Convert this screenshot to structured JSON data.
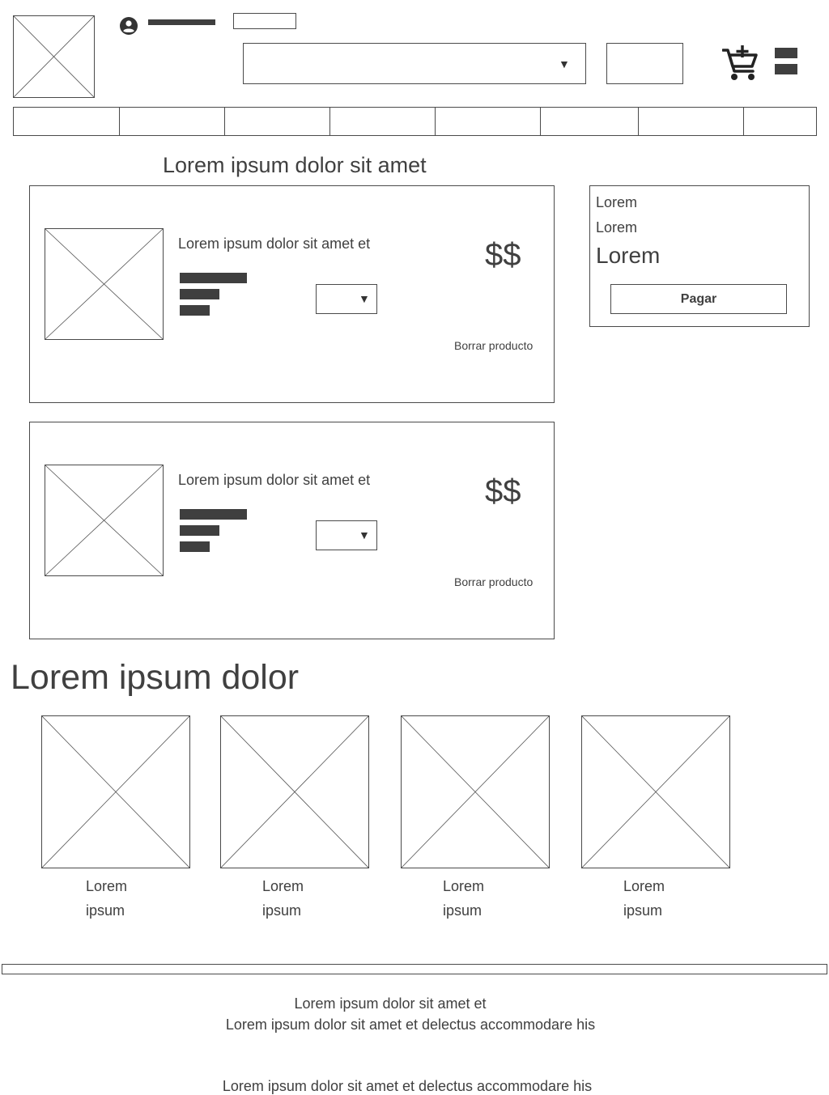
{
  "header": {
    "logo_icon": "image-placeholder-icon",
    "user_icon": "user-circle-icon",
    "cart_icon": "cart-add-icon",
    "menu_icon": "menu-icon"
  },
  "cart": {
    "title": "Lorem ipsum dolor sit amet",
    "items": [
      {
        "name": "Lorem ipsum dolor sit amet et",
        "price": "$$",
        "remove_label": "Borrar producto",
        "quantity_caret": "▼"
      },
      {
        "name": "Lorem ipsum dolor sit amet et",
        "price": "$$",
        "remove_label": "Borrar producto",
        "quantity_caret": "▼"
      }
    ]
  },
  "search": {
    "caret": "▼"
  },
  "summary": {
    "line1": "Lorem",
    "line2": "Lorem",
    "total": "Lorem",
    "pay_button": "Pagar"
  },
  "related": {
    "title": "Lorem ipsum dolor",
    "products": [
      {
        "line1": "Lorem",
        "line2": "ipsum"
      },
      {
        "line1": "Lorem",
        "line2": "ipsum"
      },
      {
        "line1": "Lorem",
        "line2": "ipsum"
      },
      {
        "line1": "Lorem",
        "line2": "ipsum"
      }
    ]
  },
  "footer": {
    "line1": "Lorem ipsum dolor sit amet et",
    "line2": "Lorem ipsum dolor sit amet et delectus accommodare his",
    "line3": "Lorem ipsum dolor sit amet et delectus accommodare his"
  }
}
